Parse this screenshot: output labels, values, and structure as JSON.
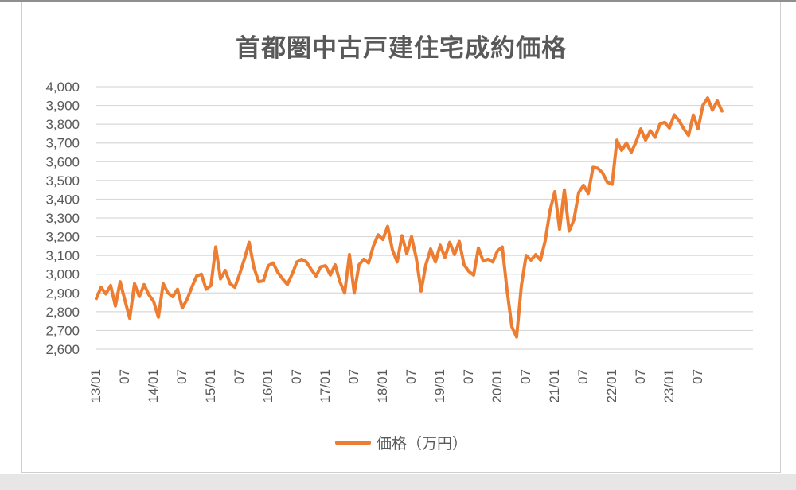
{
  "page": {
    "background": "#ffffff",
    "top_edge_color": "#8f8f8f",
    "bottom_strip_color": "#e6e6e6",
    "card_border_color": "#cfcfcf"
  },
  "chart": {
    "title": "首都圏中古戸建住宅成約価格",
    "legend_label": "価格（万円）",
    "colors": {
      "line": "#ED7D31",
      "text": "#595959",
      "gridline": "#D9D9D9",
      "background": "#ffffff"
    }
  },
  "chart_data": {
    "type": "line",
    "title": "首都圏中古戸建住宅成約価格",
    "xlabel": "",
    "ylabel": "",
    "ylim": [
      2600,
      4000
    ],
    "y_step": 100,
    "grid": true,
    "legend_position": "bottom",
    "x_tick_every": 6,
    "x_tick_labels": [
      "13/01",
      "07",
      "14/01",
      "07",
      "15/01",
      "07",
      "16/01",
      "07",
      "17/01",
      "07",
      "18/01",
      "07",
      "19/01",
      "07",
      "20/01",
      "07",
      "21/01",
      "07",
      "22/01",
      "07",
      "23/01",
      "07"
    ],
    "categories": [
      "13/01",
      "13/02",
      "13/03",
      "13/04",
      "13/05",
      "13/06",
      "13/07",
      "13/08",
      "13/09",
      "13/10",
      "13/11",
      "13/12",
      "14/01",
      "14/02",
      "14/03",
      "14/04",
      "14/05",
      "14/06",
      "14/07",
      "14/08",
      "14/09",
      "14/10",
      "14/11",
      "14/12",
      "15/01",
      "15/02",
      "15/03",
      "15/04",
      "15/05",
      "15/06",
      "15/07",
      "15/08",
      "15/09",
      "15/10",
      "15/11",
      "15/12",
      "16/01",
      "16/02",
      "16/03",
      "16/04",
      "16/05",
      "16/06",
      "16/07",
      "16/08",
      "16/09",
      "16/10",
      "16/11",
      "16/12",
      "17/01",
      "17/02",
      "17/03",
      "17/04",
      "17/05",
      "17/06",
      "17/07",
      "17/08",
      "17/09",
      "17/10",
      "17/11",
      "17/12",
      "18/01",
      "18/02",
      "18/03",
      "18/04",
      "18/05",
      "18/06",
      "18/07",
      "18/08",
      "18/09",
      "18/10",
      "18/11",
      "18/12",
      "19/01",
      "19/02",
      "19/03",
      "19/04",
      "19/05",
      "19/06",
      "19/07",
      "19/08",
      "19/09",
      "19/10",
      "19/11",
      "19/12",
      "20/01",
      "20/02",
      "20/03",
      "20/04",
      "20/05",
      "20/06",
      "20/07",
      "20/08",
      "20/09",
      "20/10",
      "20/11",
      "20/12",
      "21/01",
      "21/02",
      "21/03",
      "21/04",
      "21/05",
      "21/06",
      "21/07",
      "21/08",
      "21/09",
      "21/10",
      "21/11",
      "21/12",
      "22/01",
      "22/02",
      "22/03",
      "22/04",
      "22/05",
      "22/06",
      "22/07",
      "22/08",
      "22/09",
      "22/10",
      "22/11",
      "22/12",
      "23/01",
      "23/02",
      "23/03",
      "23/04",
      "23/05",
      "23/06",
      "23/07",
      "23/08",
      "23/09",
      "23/10",
      "23/11",
      "23/12"
    ],
    "series": [
      {
        "name": "価格（万円）",
        "values": [
          2870,
          2930,
          2895,
          2940,
          2830,
          2960,
          2860,
          2765,
          2950,
          2880,
          2945,
          2890,
          2855,
          2770,
          2950,
          2900,
          2880,
          2920,
          2820,
          2865,
          2930,
          2990,
          3000,
          2920,
          2940,
          3145,
          2975,
          3020,
          2950,
          2930,
          3000,
          3080,
          3170,
          3035,
          2960,
          2965,
          3045,
          3060,
          3010,
          2975,
          2945,
          3000,
          3065,
          3080,
          3065,
          3025,
          2990,
          3040,
          3045,
          2995,
          3050,
          2960,
          2900,
          3105,
          2900,
          3050,
          3080,
          3060,
          3150,
          3210,
          3185,
          3255,
          3130,
          3065,
          3205,
          3110,
          3200,
          3085,
          2910,
          3050,
          3135,
          3065,
          3155,
          3090,
          3170,
          3105,
          3175,
          3050,
          3015,
          2995,
          3140,
          3070,
          3080,
          3065,
          3125,
          3145,
          2915,
          2720,
          2665,
          2940,
          3100,
          3075,
          3105,
          3075,
          3180,
          3340,
          3440,
          3240,
          3450,
          3230,
          3290,
          3435,
          3475,
          3430,
          3570,
          3565,
          3540,
          3490,
          3480,
          3715,
          3660,
          3700,
          3650,
          3705,
          3775,
          3715,
          3765,
          3730,
          3800,
          3810,
          3780,
          3850,
          3820,
          3775,
          3740,
          3850,
          3775,
          3900,
          3940,
          3875,
          3925,
          3870
        ]
      }
    ]
  }
}
